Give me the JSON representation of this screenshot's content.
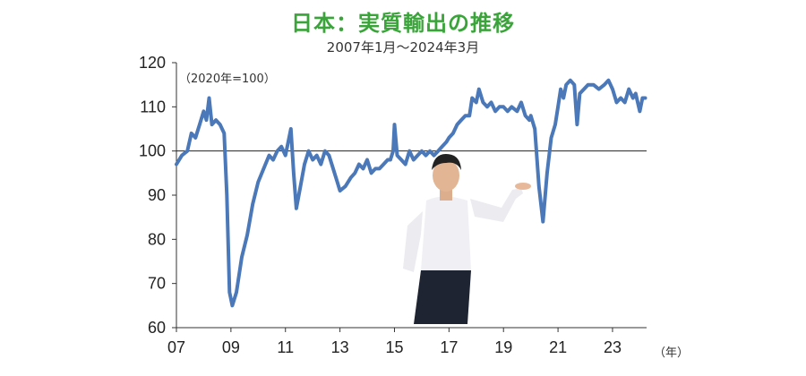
{
  "title": "日本：実質輸出の推移",
  "subtitle": "2007年1月～2024年3月",
  "colors": {
    "title": "#3aa33a",
    "line": "#4a78b8",
    "reference": "#222222"
  },
  "chart_data": {
    "type": "line",
    "title": "日本：実質輸出の推移",
    "subtitle": "2007年1月～2024年3月",
    "unit_note": "（2020年=100）",
    "xlabel": "（年）",
    "ylabel": "",
    "ylim": [
      60,
      120
    ],
    "xlim": [
      2007.0,
      2024.25
    ],
    "yticks": [
      "60",
      "70",
      "80",
      "90",
      "100",
      "110",
      "120"
    ],
    "xticks": [
      {
        "label": "07",
        "x": 2007
      },
      {
        "label": "09",
        "x": 2009
      },
      {
        "label": "11",
        "x": 2011
      },
      {
        "label": "13",
        "x": 2013
      },
      {
        "label": "15",
        "x": 2015
      },
      {
        "label": "17",
        "x": 2017
      },
      {
        "label": "19",
        "x": 2019
      },
      {
        "label": "21",
        "x": 2021
      },
      {
        "label": "23",
        "x": 2023
      }
    ],
    "reference_line": 100,
    "grid": false,
    "legend": "none",
    "series": [
      {
        "points": [
          [
            2007.0,
            97
          ],
          [
            2007.2,
            99
          ],
          [
            2007.4,
            100
          ],
          [
            2007.55,
            104
          ],
          [
            2007.7,
            103
          ],
          [
            2007.85,
            106
          ],
          [
            2008.0,
            109
          ],
          [
            2008.1,
            107
          ],
          [
            2008.2,
            112
          ],
          [
            2008.3,
            106
          ],
          [
            2008.45,
            107
          ],
          [
            2008.6,
            106
          ],
          [
            2008.75,
            104
          ],
          [
            2008.85,
            90
          ],
          [
            2008.95,
            68
          ],
          [
            2009.05,
            65
          ],
          [
            2009.2,
            68
          ],
          [
            2009.4,
            76
          ],
          [
            2009.6,
            81
          ],
          [
            2009.8,
            88
          ],
          [
            2010.0,
            93
          ],
          [
            2010.2,
            96
          ],
          [
            2010.4,
            99
          ],
          [
            2010.55,
            98
          ],
          [
            2010.7,
            100
          ],
          [
            2010.85,
            101
          ],
          [
            2011.0,
            99
          ],
          [
            2011.1,
            102
          ],
          [
            2011.2,
            105
          ],
          [
            2011.3,
            95
          ],
          [
            2011.4,
            87
          ],
          [
            2011.55,
            92
          ],
          [
            2011.7,
            97
          ],
          [
            2011.85,
            100
          ],
          [
            2012.0,
            98
          ],
          [
            2012.15,
            99
          ],
          [
            2012.3,
            97
          ],
          [
            2012.45,
            100
          ],
          [
            2012.6,
            99
          ],
          [
            2012.75,
            96
          ],
          [
            2012.9,
            93
          ],
          [
            2013.0,
            91
          ],
          [
            2013.2,
            92
          ],
          [
            2013.4,
            94
          ],
          [
            2013.55,
            95
          ],
          [
            2013.7,
            97
          ],
          [
            2013.85,
            96
          ],
          [
            2014.0,
            98
          ],
          [
            2014.15,
            95
          ],
          [
            2014.3,
            96
          ],
          [
            2014.45,
            96
          ],
          [
            2014.6,
            97
          ],
          [
            2014.75,
            98
          ],
          [
            2014.85,
            98
          ],
          [
            2014.95,
            100
          ],
          [
            2015.0,
            106
          ],
          [
            2015.1,
            99
          ],
          [
            2015.25,
            98
          ],
          [
            2015.4,
            97
          ],
          [
            2015.55,
            100
          ],
          [
            2015.7,
            98
          ],
          [
            2015.85,
            99
          ],
          [
            2016.0,
            100
          ],
          [
            2016.15,
            99
          ],
          [
            2016.3,
            100
          ],
          [
            2016.45,
            99
          ],
          [
            2016.6,
            100
          ],
          [
            2016.75,
            101
          ],
          [
            2016.9,
            102
          ],
          [
            2017.0,
            103
          ],
          [
            2017.15,
            104
          ],
          [
            2017.3,
            106
          ],
          [
            2017.45,
            107
          ],
          [
            2017.6,
            108
          ],
          [
            2017.75,
            108
          ],
          [
            2017.85,
            112
          ],
          [
            2018.0,
            111
          ],
          [
            2018.1,
            114
          ],
          [
            2018.25,
            111
          ],
          [
            2018.4,
            110
          ],
          [
            2018.55,
            111
          ],
          [
            2018.7,
            109
          ],
          [
            2018.85,
            110
          ],
          [
            2019.0,
            110
          ],
          [
            2019.15,
            109
          ],
          [
            2019.3,
            110
          ],
          [
            2019.5,
            109
          ],
          [
            2019.65,
            111
          ],
          [
            2019.8,
            108
          ],
          [
            2019.95,
            107
          ],
          [
            2020.0,
            108
          ],
          [
            2020.15,
            105
          ],
          [
            2020.3,
            92
          ],
          [
            2020.45,
            84
          ],
          [
            2020.6,
            95
          ],
          [
            2020.75,
            103
          ],
          [
            2020.9,
            106
          ],
          [
            2021.0,
            110
          ],
          [
            2021.1,
            114
          ],
          [
            2021.2,
            112
          ],
          [
            2021.3,
            115
          ],
          [
            2021.45,
            116
          ],
          [
            2021.6,
            115
          ],
          [
            2021.7,
            106
          ],
          [
            2021.8,
            113
          ],
          [
            2021.95,
            114
          ],
          [
            2022.1,
            115
          ],
          [
            2022.3,
            115
          ],
          [
            2022.5,
            114
          ],
          [
            2022.7,
            115
          ],
          [
            2022.85,
            116
          ],
          [
            2023.0,
            114
          ],
          [
            2023.15,
            111
          ],
          [
            2023.3,
            112
          ],
          [
            2023.45,
            111
          ],
          [
            2023.6,
            114
          ],
          [
            2023.75,
            112
          ],
          [
            2023.85,
            113
          ],
          [
            2024.0,
            109
          ],
          [
            2024.1,
            112
          ],
          [
            2024.2,
            112
          ]
        ]
      }
    ]
  }
}
